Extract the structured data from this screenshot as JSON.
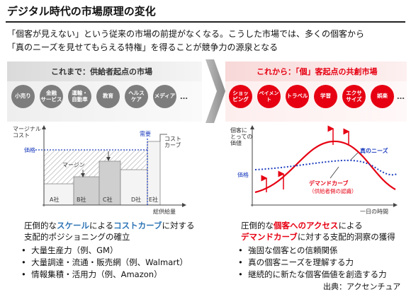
{
  "title": "デジタル時代の市場原理の変化",
  "lead": {
    "line1": "「個客が見えない」という従来の市場の前提がなくなる。こうした市場では、多くの個客から",
    "line2": "「真のニーズを見せてもらえる特権」を得ることが競争力の源泉となる"
  },
  "left": {
    "header": "これまで：供給者起点の市場",
    "circles": [
      "小売り",
      "金融\nサービス",
      "運輸・\n自動車",
      "教育",
      "ヘルス\nケア",
      "メディア"
    ],
    "ellipsis": "…",
    "chart": {
      "y_label": "マージナル\nコスト",
      "price_label": "価格",
      "demand_label": "需要",
      "cost_curve_label": "コスト\nカーブ",
      "margin_label": "マージン",
      "companies": [
        "A社",
        "B社",
        "C社",
        "D社",
        "E社"
      ],
      "x_label": "総供給量"
    },
    "statement": {
      "pre1": "圧倒的な",
      "em1": "スケール",
      "mid1": "による",
      "em2": "コストカーブ",
      "post1": "に対する",
      "line2": "支配的ポジショニングの確立"
    },
    "bullets": [
      "大量生産力（例、GM）",
      "大量調達・流通・販売網（例、Walmart）",
      "情報集積・活用力（例、Amazon）"
    ]
  },
  "right": {
    "header_pre": "これから：「",
    "header_em": "個",
    "header_post": "」客起点の共創市場",
    "circles": [
      "ショッ\nピング",
      "ペイメント",
      "トラベル",
      "学習",
      "エクサ\nサイズ",
      "娯楽"
    ],
    "ellipsis": "…",
    "chart": {
      "y_label": "個客に\nとっての\n価値",
      "price_label": "価格",
      "needs_label": "真のニーズ",
      "demand_curve_label": "デマンドカーブ",
      "demand_curve_sub": "（供給者側の認識）",
      "x_label": "一日の時間"
    },
    "statement": {
      "pre1": "圧倒的な",
      "em1": "個客へのアクセス",
      "post1": "による",
      "em2": "デマンドカーブ",
      "post2": "に対する支配的洞察の獲得"
    },
    "bullets": [
      "強固な個客との信頼関係",
      "真の個客ニーズを理解する力",
      "継続的に新たな個客価値を創造する力"
    ]
  },
  "source": "出典：アクセンチュア",
  "colors": {
    "accent_red": "#e60012",
    "accent_blue": "#2e75b6",
    "dotted_blue": "#1f3fbf",
    "circle_gray": "#7d7d7d"
  }
}
